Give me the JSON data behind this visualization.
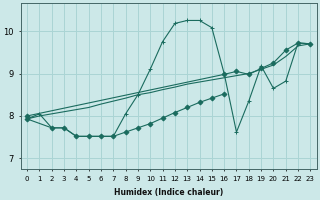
{
  "xlabel": "Humidex (Indice chaleur)",
  "xlim": [
    -0.5,
    23.5
  ],
  "ylim": [
    6.75,
    10.65
  ],
  "xticks": [
    0,
    1,
    2,
    3,
    4,
    5,
    6,
    7,
    8,
    9,
    10,
    11,
    12,
    13,
    14,
    15,
    16,
    17,
    18,
    19,
    20,
    21,
    22,
    23
  ],
  "yticks": [
    7,
    8,
    9,
    10
  ],
  "background_color": "#cce8e8",
  "grid_color": "#aad4d4",
  "line_color": "#1a6b5e",
  "lines": [
    {
      "x": [
        0,
        1,
        2,
        3,
        4,
        5,
        6,
        7,
        8,
        9,
        10,
        11,
        12,
        13,
        14,
        15,
        16,
        17,
        18,
        19,
        20,
        21,
        22,
        23
      ],
      "y": [
        7.93,
        8.05,
        7.72,
        7.72,
        7.52,
        7.52,
        7.52,
        7.52,
        8.05,
        8.5,
        9.1,
        9.75,
        10.18,
        10.25,
        10.25,
        10.08,
        9.0,
        7.62,
        8.35,
        9.18,
        8.65,
        8.82,
        9.72,
        9.7
      ],
      "marker": "+"
    },
    {
      "x": [
        0,
        16,
        17,
        18,
        19,
        20,
        21,
        22,
        23
      ],
      "y": [
        8.0,
        8.98,
        9.05,
        8.98,
        9.12,
        9.25,
        9.55,
        9.72,
        9.7
      ],
      "marker": "D"
    },
    {
      "x": [
        0,
        1,
        2,
        3,
        4,
        5,
        6,
        7,
        8,
        9,
        10,
        11,
        12,
        13,
        14,
        15,
        16,
        17,
        18,
        19,
        20,
        21,
        22,
        23
      ],
      "y": [
        7.93,
        8.0,
        8.05,
        8.1,
        8.15,
        8.2,
        8.28,
        8.35,
        8.42,
        8.5,
        8.55,
        8.62,
        8.68,
        8.75,
        8.8,
        8.85,
        8.9,
        8.95,
        9.0,
        9.1,
        9.2,
        9.4,
        9.65,
        9.7
      ],
      "marker": null
    },
    {
      "x": [
        0,
        2,
        3,
        4,
        5,
        6,
        7,
        8,
        9,
        10,
        11,
        12,
        13,
        14,
        15,
        16
      ],
      "y": [
        7.93,
        7.72,
        7.72,
        7.52,
        7.52,
        7.52,
        7.52,
        7.62,
        7.72,
        7.82,
        7.95,
        8.08,
        8.2,
        8.32,
        8.42,
        8.52
      ],
      "marker": "D"
    }
  ]
}
